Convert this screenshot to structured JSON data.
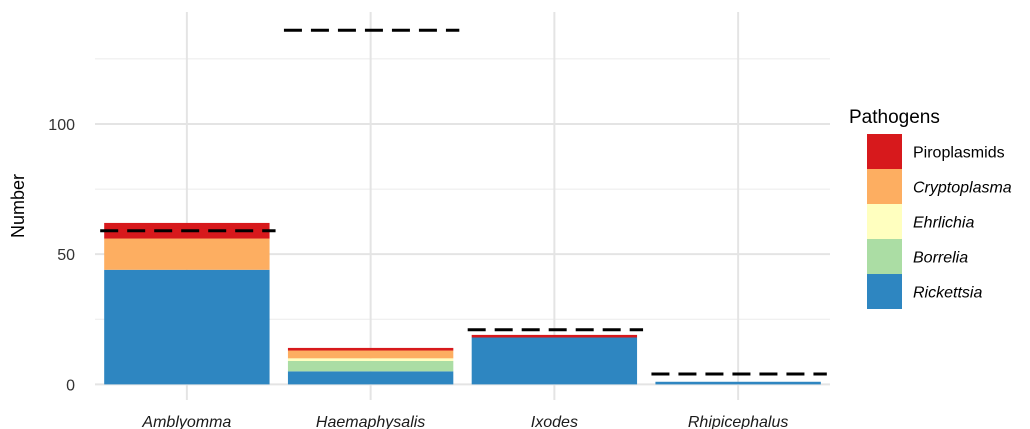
{
  "chart_data": {
    "type": "bar",
    "stacked": true,
    "categories": [
      "Amblyomma",
      "Haemaphysalis",
      "Ixodes",
      "Rhipicephalus"
    ],
    "series": [
      {
        "name": "Rickettsia",
        "values": [
          44,
          5,
          18,
          1
        ],
        "color": "#2E86C1",
        "italic": true
      },
      {
        "name": "Borrelia",
        "values": [
          0,
          4,
          0,
          0
        ],
        "color": "#ABDDA4",
        "italic": true
      },
      {
        "name": "Ehrlichia",
        "values": [
          0,
          1,
          0,
          0
        ],
        "color": "#FFFFBF",
        "italic": true
      },
      {
        "name": "Cryptoplasma",
        "values": [
          12,
          3,
          0,
          0
        ],
        "color": "#FDAE61",
        "italic": true
      },
      {
        "name": "Piroplasmids",
        "values": [
          6,
          1,
          1,
          0
        ],
        "color": "#D7191C",
        "italic": false
      }
    ],
    "reference_lines": [
      59,
      136,
      21,
      4
    ],
    "ylabel": "Number",
    "xlabel": "",
    "title": "",
    "yticks": [
      0,
      50,
      100
    ],
    "ylim": [
      -6,
      143
    ],
    "grid": true,
    "legend": {
      "title": "Pathogens",
      "position": "right",
      "order": [
        "Piroplasmids",
        "Cryptoplasma",
        "Ehrlichia",
        "Borrelia",
        "Rickettsia"
      ]
    }
  }
}
